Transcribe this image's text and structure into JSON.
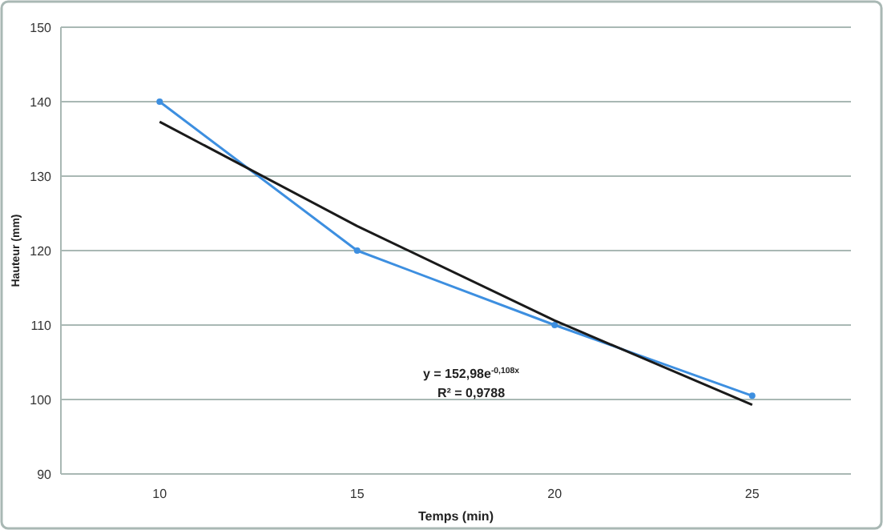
{
  "chart_data": {
    "type": "line",
    "xlabel": "Temps (min)",
    "ylabel": "Hauteur (mm)",
    "categories": [
      "10",
      "15",
      "20",
      "25"
    ],
    "series": [
      {
        "color": "#3d8fe0",
        "values": [
          140,
          120,
          110,
          100.5
        ],
        "marker": "circle"
      },
      {
        "type": "line",
        "color": "#1a1a1a",
        "values": [
          137.3,
          123.3,
          110.6,
          99.3
        ],
        "marker": "none"
      }
    ],
    "ylim": [
      90,
      150
    ],
    "yticks": [
      90,
      100,
      110,
      120,
      130,
      140,
      150
    ],
    "grid": "y",
    "annotations": [
      "y = 152,98e$^{-0,108x}$",
      "R² = 0,9788"
    ]
  }
}
